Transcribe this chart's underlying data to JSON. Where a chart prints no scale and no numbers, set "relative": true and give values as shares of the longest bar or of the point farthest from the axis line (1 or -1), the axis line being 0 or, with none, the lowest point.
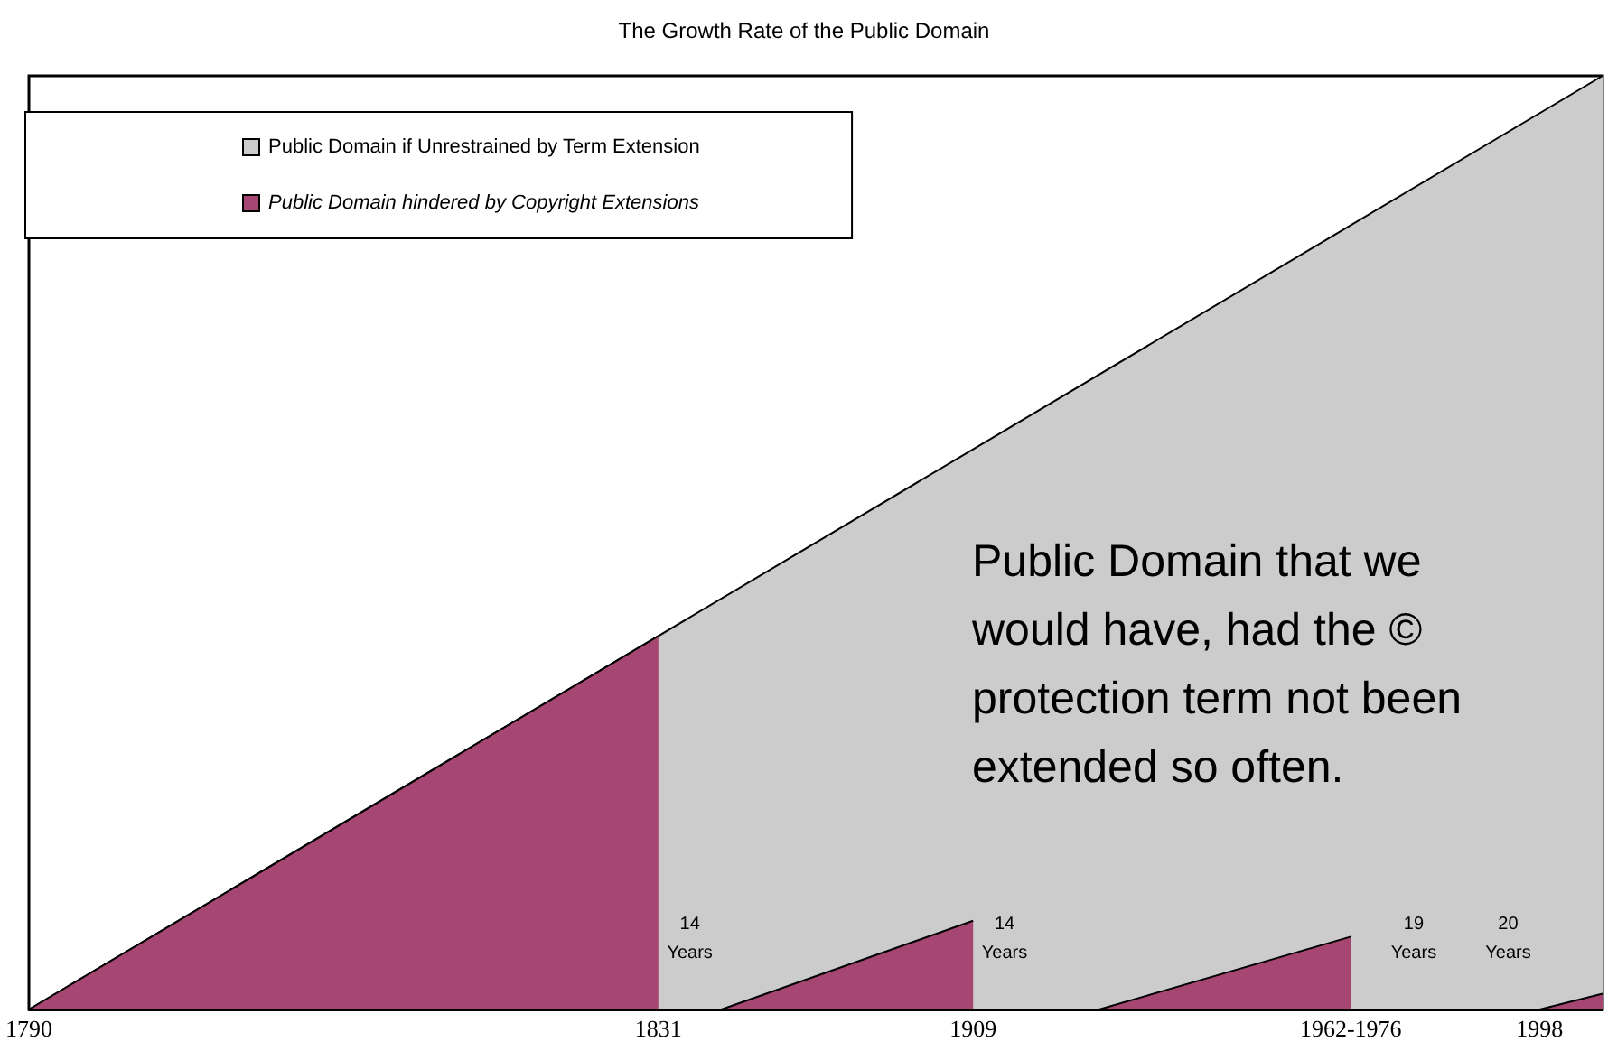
{
  "chart_data": {
    "type": "area",
    "title": "The Growth Rate of the Public Domain",
    "relative": true,
    "legend": "top left",
    "tick_labels": "x",
    "grid": false,
    "categories": [
      "1790",
      null,
      null,
      null,
      null,
      null,
      null,
      null,
      null,
      null,
      null,
      null,
      null,
      null,
      null,
      null,
      null,
      null,
      null,
      null,
      "1831",
      null,
      null,
      null,
      null,
      null,
      null,
      null,
      null,
      null,
      "1909",
      null,
      null,
      null,
      null,
      null,
      null,
      null,
      null,
      null,
      null,
      null,
      "1962-1976",
      null,
      null,
      null,
      null,
      null,
      "1998",
      null,
      null
    ],
    "series": [
      {
        "name": "Public Domain if Unrestrained by Term Extension",
        "color": "#cccccc",
        "values": [
          0,
          null,
          null,
          null,
          null,
          null,
          null,
          null,
          null,
          null,
          null,
          null,
          null,
          null,
          null,
          null,
          null,
          null,
          null,
          null,
          null,
          null,
          null,
          null,
          null,
          null,
          null,
          null,
          null,
          null,
          null,
          null,
          null,
          null,
          null,
          null,
          null,
          null,
          null,
          null,
          null,
          null,
          null,
          null,
          null,
          null,
          null,
          null,
          null,
          null,
          1
        ]
      },
      {
        "name": "Public Domain hindered by Copyright Extensions",
        "color": "#a64673",
        "values": [
          0,
          null,
          null,
          null,
          null,
          null,
          null,
          null,
          null,
          null,
          null,
          null,
          null,
          null,
          null,
          null,
          null,
          null,
          null,
          null,
          0.4,
          null,
          null,
          null,
          null,
          null,
          null,
          null,
          null,
          null,
          null,
          null,
          null,
          null,
          null,
          null,
          null,
          null,
          null,
          null,
          null,
          null,
          null,
          null,
          null,
          null,
          null,
          null,
          null,
          null,
          null
        ]
      },
      {
        "color": "#a64673",
        "values": [
          null,
          null,
          null,
          null,
          null,
          null,
          null,
          null,
          null,
          null,
          null,
          null,
          null,
          null,
          null,
          null,
          null,
          null,
          null,
          null,
          null,
          null,
          0,
          null,
          null,
          null,
          null,
          null,
          null,
          null,
          0.095,
          null,
          null,
          null,
          null,
          null,
          null,
          null,
          null,
          null,
          null,
          null,
          null,
          null,
          null,
          null,
          null,
          null,
          null,
          null,
          null
        ]
      },
      {
        "color": "#a64673",
        "values": [
          null,
          null,
          null,
          null,
          null,
          null,
          null,
          null,
          null,
          null,
          null,
          null,
          null,
          null,
          null,
          null,
          null,
          null,
          null,
          null,
          null,
          null,
          null,
          null,
          null,
          null,
          null,
          null,
          null,
          null,
          null,
          null,
          null,
          null,
          0,
          null,
          null,
          null,
          null,
          null,
          null,
          null,
          0.078,
          null,
          null,
          null,
          null,
          null,
          null,
          null,
          null
        ]
      },
      {
        "color": "#a64673",
        "values": [
          null,
          null,
          null,
          null,
          null,
          null,
          null,
          null,
          null,
          null,
          null,
          null,
          null,
          null,
          null,
          null,
          null,
          null,
          null,
          null,
          null,
          null,
          null,
          null,
          null,
          null,
          null,
          null,
          null,
          null,
          null,
          null,
          null,
          null,
          null,
          null,
          null,
          null,
          null,
          null,
          null,
          null,
          null,
          null,
          null,
          null,
          null,
          null,
          0,
          null,
          0.017
        ]
      }
    ],
    "annotations": [
      "14 Years",
      "14 Years",
      "19 Years",
      "20 Years",
      "Public Domain that we would have, had the © protection term not been extended so often."
    ]
  }
}
